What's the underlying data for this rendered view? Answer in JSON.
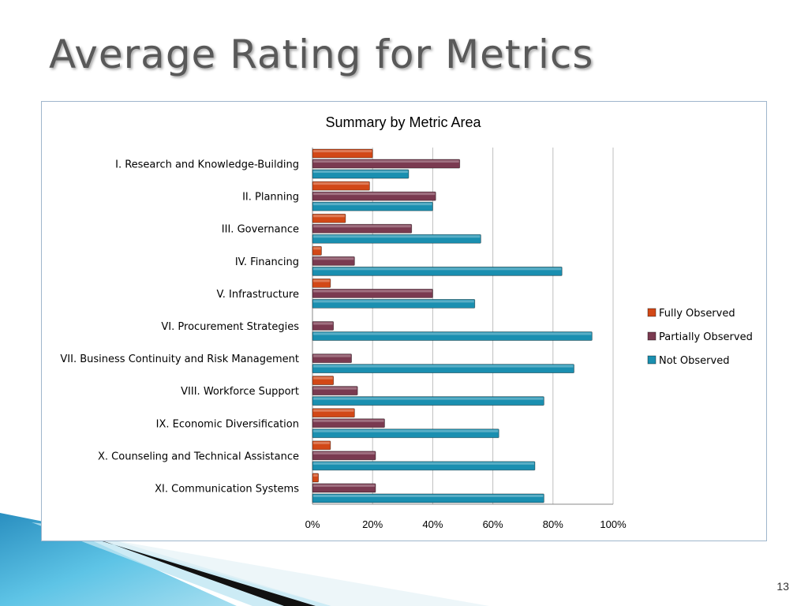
{
  "slide": {
    "title": "Average Rating for Metrics",
    "page_number": "13"
  },
  "colors": {
    "fully": "#d24817",
    "partially": "#7a3a50",
    "not": "#1a8fb0",
    "grid": "#bfbfbf",
    "title_text": "#595959"
  },
  "chart_data": {
    "type": "bar",
    "orientation": "horizontal",
    "title": "Summary by Metric Area",
    "xlabel": "",
    "ylabel": "",
    "xlim": [
      0,
      100
    ],
    "x_ticks": [
      "0%",
      "20%",
      "40%",
      "60%",
      "80%",
      "100%"
    ],
    "grid": true,
    "legend_position": "right",
    "categories": [
      "I. Research and Knowledge-Building",
      "II. Planning",
      "III. Governance",
      "IV. Financing",
      "V. Infrastructure",
      "VI. Procurement Strategies",
      "VII. Business Continuity and Risk Management",
      "VIII. Workforce Support",
      "IX. Economic Diversification",
      "X. Counseling and Technical Assistance",
      "XI. Communication Systems"
    ],
    "series": [
      {
        "name": "Fully Observed",
        "color": "#d24817",
        "values": [
          20,
          19,
          11,
          3,
          6,
          0,
          0,
          7,
          14,
          6,
          2
        ]
      },
      {
        "name": "Partially Observed",
        "color": "#7a3a50",
        "values": [
          49,
          41,
          33,
          14,
          40,
          7,
          13,
          15,
          24,
          21,
          21
        ]
      },
      {
        "name": "Not Observed",
        "color": "#1a8fb0",
        "values": [
          32,
          40,
          56,
          83,
          54,
          93,
          87,
          77,
          62,
          74,
          77
        ]
      }
    ]
  }
}
